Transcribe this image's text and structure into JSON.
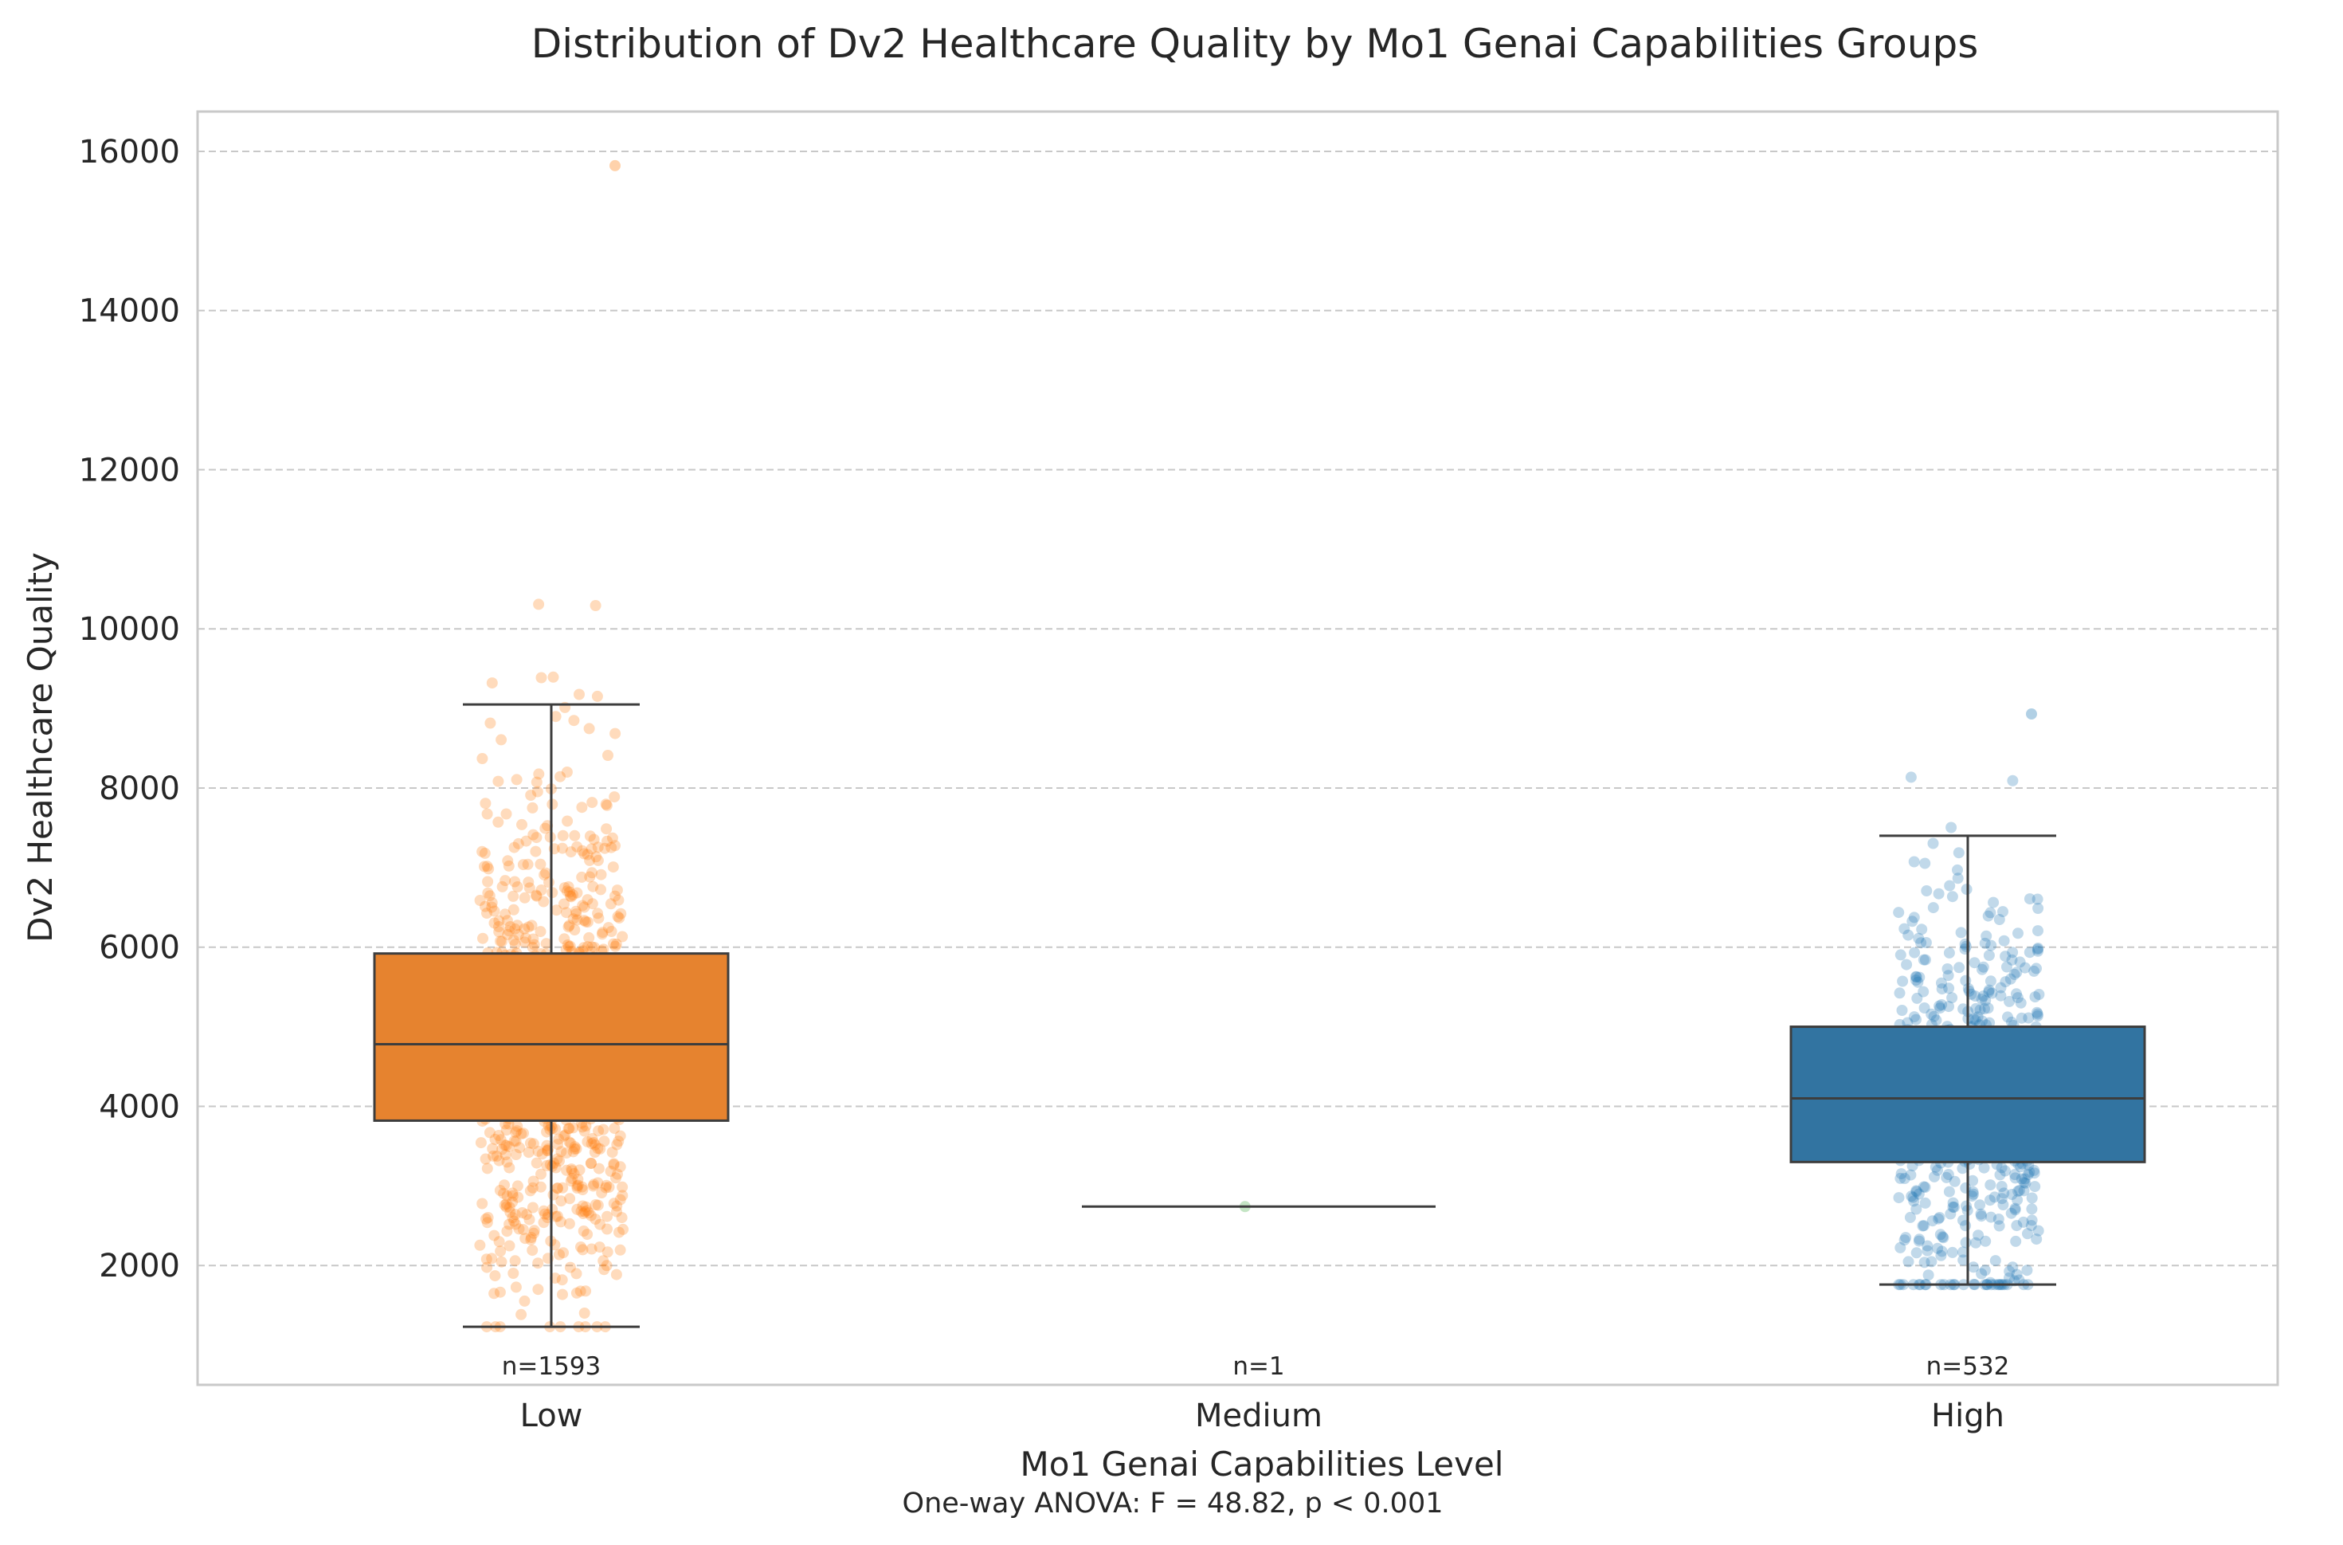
{
  "chart_data": {
    "type": "box",
    "title": "Distribution of Dv2 Healthcare Quality by Mo1 Genai Capabilities Groups",
    "xlabel": "Mo1 Genai Capabilities Level",
    "ylabel": "Dv2 Healthcare Quality",
    "annotation": "One-way ANOVA: F = 48.82, p < 0.001",
    "ylim": [
      500,
      16500
    ],
    "yticks": [
      2000,
      4000,
      6000,
      8000,
      10000,
      12000,
      14000,
      16000
    ],
    "grid": "y",
    "categories": [
      "Low",
      "Medium",
      "High"
    ],
    "groups": [
      {
        "name": "Low",
        "n": 1593,
        "n_label": "n=1593",
        "color": "#ff7f0e",
        "box_color": "#e6832f",
        "whisker_low": 1230,
        "q1": 3820,
        "median": 4780,
        "q3": 5920,
        "whisker_high": 9050,
        "max_point": 15820
      },
      {
        "name": "Medium",
        "n": 1,
        "n_label": "n=1",
        "color": "#2ca02c",
        "box_color": "#2ca02c",
        "whisker_low": 2740,
        "q1": 2740,
        "median": 2740,
        "q3": 2740,
        "whisker_high": 2740,
        "max_point": 2740
      },
      {
        "name": "High",
        "n": 532,
        "n_label": "n=532",
        "color": "#1f77b4",
        "box_color": "#3274a1",
        "whisker_low": 1760,
        "q1": 3300,
        "median": 4100,
        "q3": 5000,
        "whisker_high": 7400,
        "max_point": 8930
      }
    ]
  }
}
